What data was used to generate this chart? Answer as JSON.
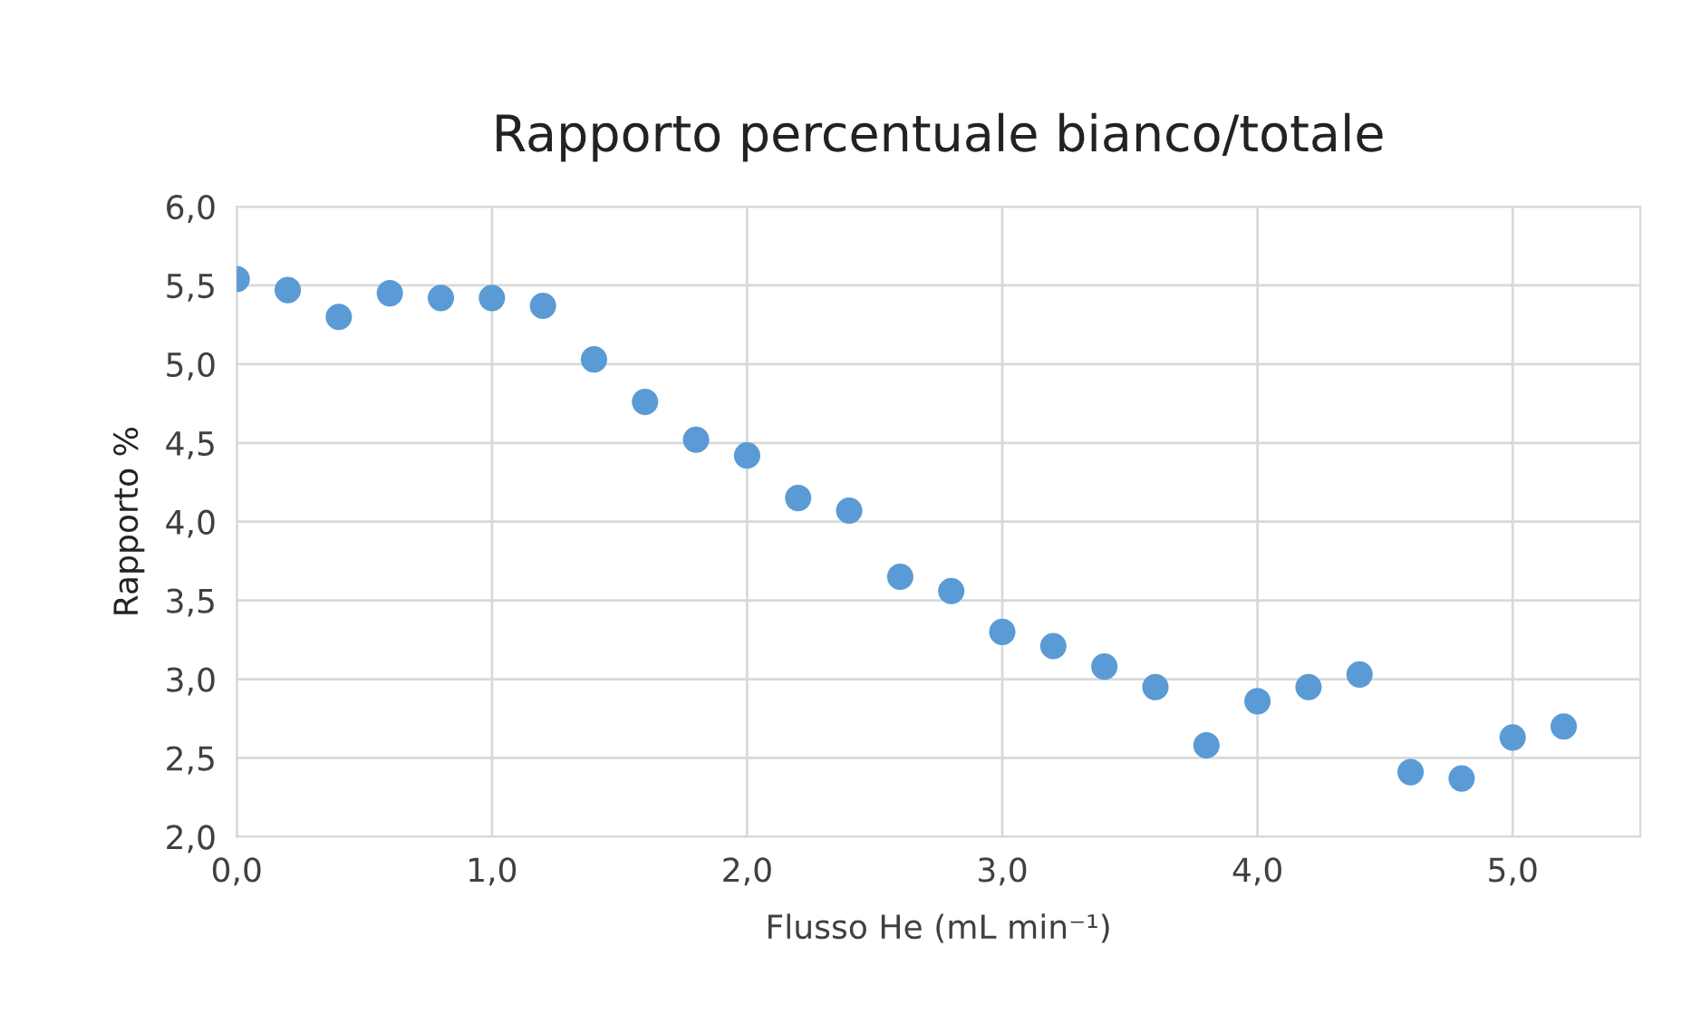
{
  "chart_data": {
    "type": "scatter",
    "title": "Rapporto percentuale bianco/totale",
    "xlabel": "Flusso He (mL min⁻¹)",
    "ylabel": "Rapporto %",
    "x": [
      0.0,
      0.2,
      0.4,
      0.6,
      0.8,
      1.0,
      1.2,
      1.4,
      1.6,
      1.8,
      2.0,
      2.2,
      2.4,
      2.6,
      2.8,
      3.0,
      3.2,
      3.4,
      3.6,
      3.8,
      4.0,
      4.2,
      4.4,
      4.6,
      4.8,
      5.0,
      5.2
    ],
    "series": [
      {
        "color": "#5b9bd5",
        "values": [
          5.54,
          5.47,
          5.3,
          5.45,
          5.42,
          5.42,
          5.37,
          5.03,
          4.76,
          4.52,
          4.42,
          4.15,
          4.07,
          3.65,
          3.56,
          3.3,
          3.21,
          3.08,
          2.95,
          2.58,
          2.86,
          2.95,
          3.03,
          2.41,
          2.37,
          2.63,
          2.7
        ]
      }
    ],
    "xlim": [
      0,
      5.5
    ],
    "xticks": [
      {
        "value": 0,
        "label": "0,0"
      },
      {
        "value": 1,
        "label": "1,0"
      },
      {
        "value": 2,
        "label": "2,0"
      },
      {
        "value": 3,
        "label": "3,0"
      },
      {
        "value": 4,
        "label": "4,0"
      },
      {
        "value": 5,
        "label": "5,0"
      }
    ],
    "ylim": [
      2,
      6
    ],
    "yticks": [
      {
        "value": 2,
        "label": "2,0"
      },
      {
        "value": 2.5,
        "label": "2,5"
      },
      {
        "value": 3,
        "label": "3,0"
      },
      {
        "value": 3.5,
        "label": "3,5"
      },
      {
        "value": 4,
        "label": "4,0"
      },
      {
        "value": 4.5,
        "label": "4,5"
      },
      {
        "value": 5,
        "label": "5,0"
      },
      {
        "value": 5.5,
        "label": "5,5"
      },
      {
        "value": 6,
        "label": "6,0"
      }
    ],
    "grid": true,
    "marker": "circle"
  }
}
